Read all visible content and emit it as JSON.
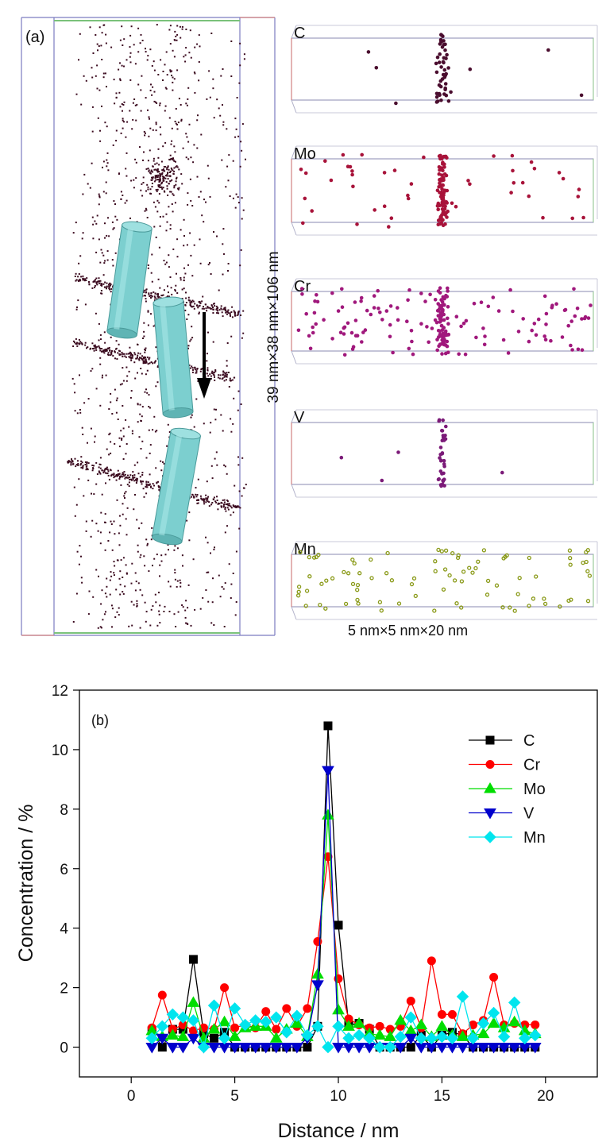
{
  "panel_a": {
    "label": "(a)",
    "volume_label": "39 nm×38 nm×106 nm",
    "subvolume_label": "5 nm×5 nm×20 nm",
    "elements": [
      {
        "symbol": "C",
        "color": "#4a0d2e"
      },
      {
        "symbol": "Mo",
        "color": "#a8133a"
      },
      {
        "symbol": "Cr",
        "color": "#a0187c"
      },
      {
        "symbol": "V",
        "color": "#7b1a78"
      },
      {
        "symbol": "Mn",
        "color": "#8a9a18"
      }
    ],
    "cylinder_color": "#7ccfcf",
    "atom_color": "#3b0a1f"
  },
  "chart_data": {
    "type": "line",
    "panel_label": "(b)",
    "xlabel": "Distance / nm",
    "ylabel": "Concentration / %",
    "xlim": [
      -2.5,
      22.5
    ],
    "ylim": [
      -1,
      12
    ],
    "xticks": [
      0,
      5,
      10,
      15,
      20
    ],
    "yticks": [
      0,
      2,
      4,
      6,
      8,
      10,
      12
    ],
    "grid": false,
    "legend_position": "top-right",
    "x": [
      1,
      1.5,
      2,
      2.5,
      3,
      3.5,
      4,
      4.5,
      5,
      5.5,
      6,
      6.5,
      7,
      7.5,
      8,
      8.5,
      9,
      9.5,
      10,
      10.5,
      11,
      11.5,
      12,
      12.5,
      13,
      13.5,
      14,
      14.5,
      15,
      15.5,
      16,
      16.5,
      17,
      17.5,
      18,
      18.5,
      19,
      19.5
    ],
    "series": [
      {
        "name": "C",
        "color": "#000000",
        "marker": "square",
        "values": [
          0.55,
          0,
          0.6,
          0.6,
          2.95,
          0.45,
          0.3,
          0.5,
          0,
          0,
          0,
          0,
          0,
          0,
          0,
          0,
          0.7,
          10.8,
          4.1,
          0.75,
          0.8,
          0.6,
          0,
          0,
          0,
          0,
          0.4,
          0,
          0.4,
          0.5,
          0.4,
          0,
          0,
          0,
          0,
          0,
          0,
          0
        ]
      },
      {
        "name": "Cr",
        "color": "#ff0000",
        "marker": "circle",
        "values": [
          0.65,
          1.75,
          0.6,
          0.75,
          0.55,
          0.65,
          0.6,
          2.0,
          0.65,
          0.75,
          0.65,
          1.2,
          0.6,
          1.3,
          0.7,
          1.3,
          3.55,
          6.4,
          2.3,
          0.95,
          0.75,
          0.65,
          0.7,
          0.6,
          0.7,
          1.55,
          0.65,
          2.9,
          1.1,
          1.1,
          0.45,
          0.75,
          0.9,
          2.35,
          0.75,
          0.8,
          0.75,
          0.75
        ]
      },
      {
        "name": "Mo",
        "color": "#00dd00",
        "marker": "triangle-up",
        "values": [
          0.55,
          0.35,
          0.4,
          0.35,
          1.5,
          0.3,
          0.6,
          0.85,
          0.35,
          0.65,
          0.7,
          0.7,
          0.3,
          0.6,
          0.8,
          0.35,
          2.45,
          7.8,
          1.25,
          0.7,
          0.8,
          0.45,
          0.4,
          0.35,
          0.9,
          0.55,
          0.75,
          0.35,
          0.7,
          0.4,
          0.35,
          0.4,
          0.45,
          0.8,
          0.65,
          0.85,
          0.55,
          0.45
        ]
      },
      {
        "name": "V",
        "color": "#0000cc",
        "marker": "triangle-down",
        "values": [
          0,
          0.3,
          0,
          0,
          0.3,
          0,
          0,
          0,
          0,
          0,
          0,
          0,
          0,
          0,
          0,
          0.3,
          2.1,
          9.3,
          0,
          0,
          0,
          0,
          0,
          0,
          0,
          0.3,
          0,
          0,
          0,
          0,
          0,
          0,
          0,
          0,
          0,
          0,
          0,
          0
        ]
      },
      {
        "name": "Mn",
        "color": "#00e5ee",
        "marker": "diamond",
        "values": [
          0.3,
          0.7,
          1.1,
          1.0,
          0.9,
          0,
          1.4,
          0.3,
          1.3,
          0.75,
          0.9,
          0.85,
          1.0,
          0.5,
          1.05,
          0.4,
          0.7,
          0,
          0.7,
          0.3,
          0.4,
          0.3,
          0,
          0,
          0.35,
          1.0,
          0.3,
          0.3,
          0.35,
          0.3,
          1.7,
          0.3,
          0.8,
          1.15,
          0.35,
          1.5,
          0.3,
          0.4
        ]
      }
    ]
  }
}
